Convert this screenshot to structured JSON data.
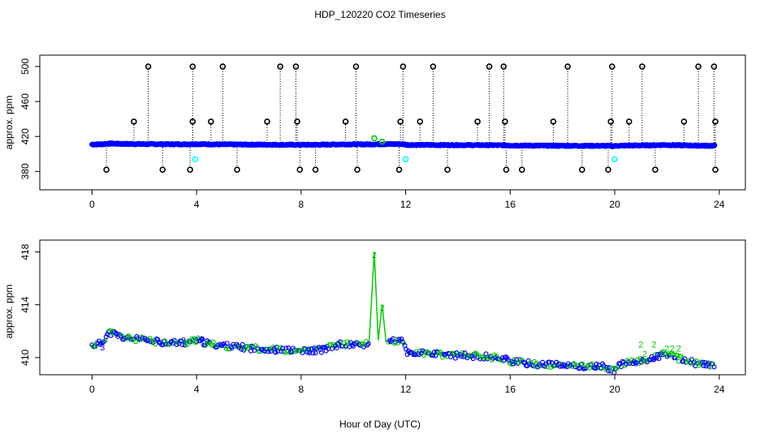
{
  "chart_data": [
    {
      "type": "scatter",
      "title": "HDP_120220  CO2 Timeseries",
      "xlabel": "",
      "ylabel": "approx. ppm",
      "xlim": [
        -2,
        25
      ],
      "ylim": [
        359,
        513
      ],
      "xticks": [
        "0",
        "4",
        "8",
        "12",
        "16",
        "20",
        "24"
      ],
      "yticks": [
        "380",
        "420",
        "460",
        "500"
      ],
      "baseline_ppm": 410,
      "colors": {
        "main": "#0000ff",
        "outlier": "#000000",
        "cyan": "#00ffff",
        "green": "#00cc00",
        "frame": "#000000"
      },
      "spikes_high": [
        2.15,
        3.85,
        5.0,
        7.2,
        7.8,
        10.1,
        11.9,
        13.05,
        15.2,
        15.75,
        18.2,
        19.9,
        21.05,
        23.2,
        23.8
      ],
      "spikes_low": [
        0.55,
        2.7,
        3.75,
        5.55,
        7.95,
        8.55,
        10.15,
        11.75,
        13.6,
        15.85,
        16.45,
        18.75,
        19.75,
        21.55,
        23.85
      ],
      "spikes_mid": [
        1.6,
        3.85,
        4.55,
        6.7,
        7.85,
        9.7,
        11.8,
        12.55,
        14.75,
        15.8,
        17.65,
        19.85,
        20.55,
        22.65,
        23.85
      ],
      "cyan_points": [
        [
          3.95,
          394
        ],
        [
          12.0,
          394
        ],
        [
          20.0,
          394
        ]
      ],
      "green_points": [
        [
          10.8,
          418
        ],
        [
          11.1,
          414
        ]
      ],
      "value_profile": [
        [
          0,
          410.9
        ],
        [
          0.35,
          411.1
        ],
        [
          0.65,
          411.9
        ],
        [
          0.85,
          411.8
        ],
        [
          1.2,
          411.5
        ],
        [
          2.5,
          411.2
        ],
        [
          3.5,
          411.1
        ],
        [
          4.0,
          411.3
        ],
        [
          4.6,
          411.0
        ],
        [
          5.5,
          410.8
        ],
        [
          7.0,
          410.6
        ],
        [
          7.8,
          410.5
        ],
        [
          8.2,
          410.5
        ],
        [
          8.8,
          410.6
        ],
        [
          9.5,
          411.0
        ],
        [
          10.5,
          411.0
        ],
        [
          11.3,
          411.3
        ],
        [
          11.9,
          411.2
        ],
        [
          12.05,
          410.4
        ],
        [
          13.5,
          410.2
        ],
        [
          15.0,
          410.1
        ],
        [
          15.9,
          409.9
        ],
        [
          16.0,
          409.7
        ],
        [
          17.0,
          409.5
        ],
        [
          18.0,
          409.4
        ],
        [
          19.6,
          409.3
        ],
        [
          19.95,
          409.0
        ],
        [
          20.1,
          409.4
        ],
        [
          20.8,
          409.7
        ],
        [
          21.4,
          409.9
        ],
        [
          21.9,
          410.3
        ],
        [
          22.5,
          409.9
        ],
        [
          23.2,
          409.5
        ],
        [
          23.85,
          409.4
        ]
      ]
    },
    {
      "type": "scatter",
      "title": "",
      "xlabel": "Hour of Day (UTC)",
      "ylabel": "approx. ppm",
      "xlim": [
        -2,
        25
      ],
      "ylim": [
        408.7,
        418.9
      ],
      "xticks": [
        "0",
        "4",
        "8",
        "12",
        "16",
        "20",
        "24"
      ],
      "yticks": [
        "410",
        "414",
        "418"
      ],
      "data_symbol": "3",
      "flag_symbol": "2",
      "series": [
        {
          "name": "data",
          "color": "#0000ff",
          "ring_color": "#00cc00",
          "marker_labels": [
            [
              0.4,
              410.8
            ],
            [
              3.5,
              411.3
            ],
            [
              4.0,
              411.3
            ],
            [
              4.2,
              411.4
            ],
            [
              7.0,
              410.5
            ],
            [
              8.3,
              410.5
            ],
            [
              12.3,
              410.3
            ],
            [
              16.1,
              409.6
            ],
            [
              20.8,
              409.6
            ],
            [
              21.5,
              409.9
            ],
            [
              23.6,
              409.4
            ]
          ]
        },
        {
          "name": "flagged",
          "color": "#00cc00",
          "peaks": [
            [
              10.8,
              418.0
            ],
            [
              11.1,
              414.0
            ]
          ],
          "labels": [
            [
              0.8,
              411.9
            ],
            [
              10.8,
              417.8
            ],
            [
              11.1,
              413.8
            ],
            [
              21.0,
              411.0
            ],
            [
              21.15,
              410.3
            ],
            [
              21.5,
              411.0
            ],
            [
              21.8,
              410.4
            ],
            [
              22.0,
              410.7
            ],
            [
              22.2,
              410.7
            ],
            [
              22.45,
              410.7
            ]
          ]
        }
      ]
    }
  ]
}
